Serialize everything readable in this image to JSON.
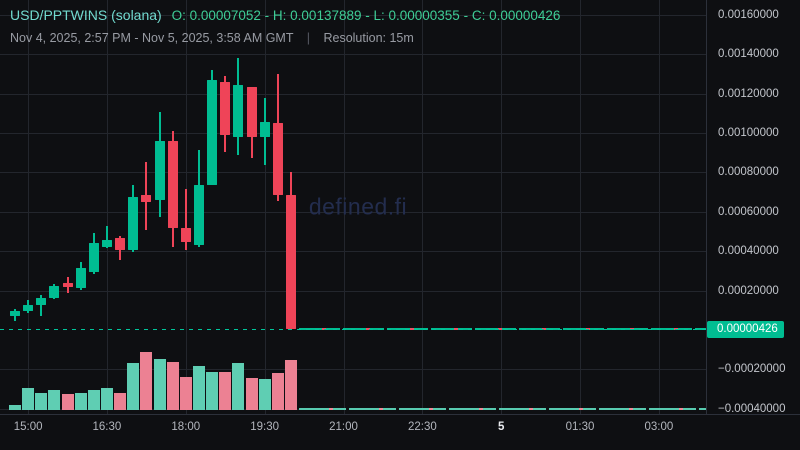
{
  "header": {
    "symbol": "USD/PPTWINS (solana)",
    "ohlc_summary": "O: 0.00007052 - H: 0.00137889 - L: 0.00000355 - C: 0.00000426",
    "date_range": "Nov 4, 2025, 2:57 PM - Nov 5, 2025, 3:58 AM GMT",
    "separator": "|",
    "resolution": "Resolution: 15m"
  },
  "watermark": {
    "text": "defined.fi"
  },
  "colors": {
    "background": "#0e0f12",
    "grid": "#23262d",
    "candle_up": "#00bd92",
    "candle_down": "#ef4458",
    "volume_up": "#5fceb3",
    "volume_down": "#ec8193",
    "current_price_badge_bg": "#00bd92",
    "current_price_badge_text": "#ffffff",
    "title_teal": "#72dacf",
    "ohlc_green": "#3ecd96",
    "axis_text": "#c3c6cc",
    "watermark_blue": "#232d4e"
  },
  "price_axis": {
    "labels": [
      {
        "text": "0.00160000",
        "value": 0.0016
      },
      {
        "text": "0.00140000",
        "value": 0.0014
      },
      {
        "text": "0.00120000",
        "value": 0.0012
      },
      {
        "text": "0.00100000",
        "value": 0.001
      },
      {
        "text": "0.00080000",
        "value": 0.0008
      },
      {
        "text": "0.00060000",
        "value": 0.0006
      },
      {
        "text": "0.00040000",
        "value": 0.0004
      },
      {
        "text": "0.00020000",
        "value": 0.0002
      },
      {
        "text": "−0.00020000",
        "value": -0.0002
      },
      {
        "text": "−0.00040000",
        "value": -0.0004
      }
    ],
    "current": {
      "text": "0.00000426",
      "value": 4.26e-06
    }
  },
  "time_axis": {
    "ticks": [
      {
        "text": "15:00",
        "bold": false
      },
      {
        "text": "16:30",
        "bold": false
      },
      {
        "text": "18:00",
        "bold": false
      },
      {
        "text": "19:30",
        "bold": false
      },
      {
        "text": "21:00",
        "bold": false
      },
      {
        "text": "22:30",
        "bold": false
      },
      {
        "text": "5",
        "bold": true
      },
      {
        "text": "01:30",
        "bold": false
      },
      {
        "text": "03:00",
        "bold": false
      }
    ]
  },
  "chart_data": {
    "type": "candlestick_with_volume",
    "title": "USD/PPTWINS (solana)",
    "resolution": "15m",
    "visible_range": "Nov 4, 2025, 2:57 PM - Nov 5, 2025, 3:58 AM GMT",
    "range_ohlc": {
      "open": 7.052e-05,
      "high": 0.00137889,
      "low": 3.55e-06,
      "close": 4.26e-06
    },
    "y_range": [
      -0.0005,
      0.001675
    ],
    "grid": true,
    "current_price": 4.26e-06,
    "volume_units": "relative",
    "candles": [
      {
        "t": "14:45",
        "o": 7.052e-05,
        "h": 0.0001066,
        "l": 4.569e-05,
        "c": 9.644e-05,
        "v": 5
      },
      {
        "t": "15:00",
        "o": 9.644e-05,
        "h": 0.00015228,
        "l": 8.629e-05,
        "c": 0.0001269,
        "v": 22
      },
      {
        "t": "15:15",
        "o": 0.0001269,
        "h": 0.00017766,
        "l": 7.106e-05,
        "c": 0.00016497,
        "v": 17
      },
      {
        "t": "15:30",
        "o": 0.00016497,
        "h": 0.0002335,
        "l": 0.00015736,
        "c": 0.00022335,
        "v": 20
      },
      {
        "t": "15:45",
        "o": 0.00023858,
        "h": 0.00026904,
        "l": 0.00018782,
        "c": 0.00021827,
        "v": 16
      },
      {
        "t": "16:00",
        "o": 0.0002132,
        "h": 0.00034518,
        "l": 0.00020305,
        "c": 0.00031472,
        "v": 17
      },
      {
        "t": "16:15",
        "o": 0.00029442,
        "h": 0.00049239,
        "l": 0.00028426,
        "c": 0.00044163,
        "v": 20
      },
      {
        "t": "16:30",
        "o": 0.00042132,
        "h": 0.00052792,
        "l": 0.00041624,
        "c": 0.00045685,
        "v": 22
      },
      {
        "t": "16:45",
        "o": 0.000467,
        "h": 0.00047716,
        "l": 0.00035533,
        "c": 0.00040609,
        "v": 17
      },
      {
        "t": "17:00",
        "o": 0.00040609,
        "h": 0.00073604,
        "l": 0.00039594,
        "c": 0.00067513,
        "v": 47
      },
      {
        "t": "17:15",
        "o": 0.00068528,
        "h": 0.00085279,
        "l": 0.00050761,
        "c": 0.00064975,
        "v": 58
      },
      {
        "t": "17:30",
        "o": 0.0006599,
        "h": 0.0011066,
        "l": 0.0005736,
        "c": 0.00095939,
        "v": 51
      },
      {
        "t": "17:45",
        "o": 0.00095939,
        "h": 0.00101015,
        "l": 0.00042132,
        "c": 0.00051777,
        "v": 48
      },
      {
        "t": "18:00",
        "o": 0.00051777,
        "h": 0.00071574,
        "l": 0.00040609,
        "c": 0.0004467,
        "v": 33
      },
      {
        "t": "18:15",
        "o": 0.00043147,
        "h": 0.00091371,
        "l": 0.00042132,
        "c": 0.00073604,
        "v": 44
      },
      {
        "t": "18:30",
        "o": 0.00073604,
        "h": 0.0013198,
        "l": 0.00073604,
        "c": 0.00126904,
        "v": 38
      },
      {
        "t": "18:45",
        "o": 0.00125888,
        "h": 0.00128934,
        "l": 0.00090355,
        "c": 0.00098985,
        "v": 38
      },
      {
        "t": "19:00",
        "o": 0.0009797,
        "h": 0.00137889,
        "l": 0.00088832,
        "c": 0.00124365,
        "v": 47
      },
      {
        "t": "19:15",
        "o": 0.0012335,
        "h": 0.0012335,
        "l": 0.0008731,
        "c": 0.0009797,
        "v": 32
      },
      {
        "t": "19:30",
        "o": 0.0009797,
        "h": 0.00117766,
        "l": 0.00083756,
        "c": 0.00105584,
        "v": 31
      },
      {
        "t": "19:45",
        "o": 0.00105076,
        "h": 0.00129949,
        "l": 0.00065482,
        "c": 0.00068528,
        "v": 37
      },
      {
        "t": "20:00",
        "o": 0.00068528,
        "h": 0.00080203,
        "l": 3.55e-06,
        "c": 4.26e-06,
        "v": 50
      }
    ],
    "flat_tail": {
      "from": "20:15",
      "to": "03:45",
      "count": 31,
      "price": 4.26e-06,
      "volume": 1,
      "note": "price flatlines at current price after collapse"
    }
  }
}
